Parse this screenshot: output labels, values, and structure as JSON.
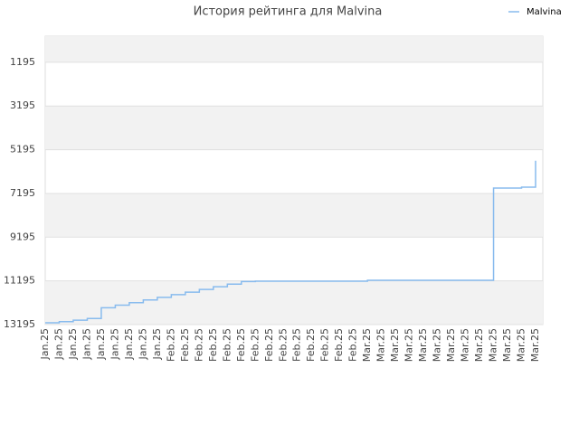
{
  "chart_data": {
    "type": "line",
    "title": "История рейтинга для Malvina",
    "categories": [
      "Jan.25",
      "Jan.25",
      "Jan.25",
      "Jan.25",
      "Jan.25",
      "Jan.25",
      "Jan.25",
      "Jan.25",
      "Jan.25",
      "Feb.25",
      "Feb.25",
      "Feb.25",
      "Feb.25",
      "Feb.25",
      "Feb.25",
      "Feb.25",
      "Feb.25",
      "Feb.25",
      "Feb.25",
      "Feb.25",
      "Feb.25",
      "Feb.25",
      "Feb.25",
      "Mar.25",
      "Mar.25",
      "Mar.25",
      "Mar.25",
      "Mar.25",
      "Mar.25",
      "Mar.25",
      "Mar.25",
      "Mar.25",
      "Mar.25",
      "Mar.25",
      "Mar.25",
      "Mar.25"
    ],
    "series": [
      {
        "name": "Malvina",
        "color": "#88bbee",
        "values": [
          13110,
          13063,
          12992,
          12918,
          12426,
          12306,
          12191,
          12066,
          11950,
          11826,
          11710,
          11586,
          11462,
          11346,
          11226,
          11210,
          11210,
          11210,
          11210,
          11210,
          11210,
          11210,
          11210,
          11170,
          11170,
          11170,
          11170,
          11170,
          11170,
          11170,
          11170,
          11170,
          6950,
          6950,
          6910,
          5700
        ]
      }
    ],
    "ylim": [
      13195,
      0
    ],
    "yticks": [
      1195,
      3195,
      5195,
      7195,
      9195,
      11195,
      13195
    ],
    "grid": true,
    "legend": "top-right"
  }
}
